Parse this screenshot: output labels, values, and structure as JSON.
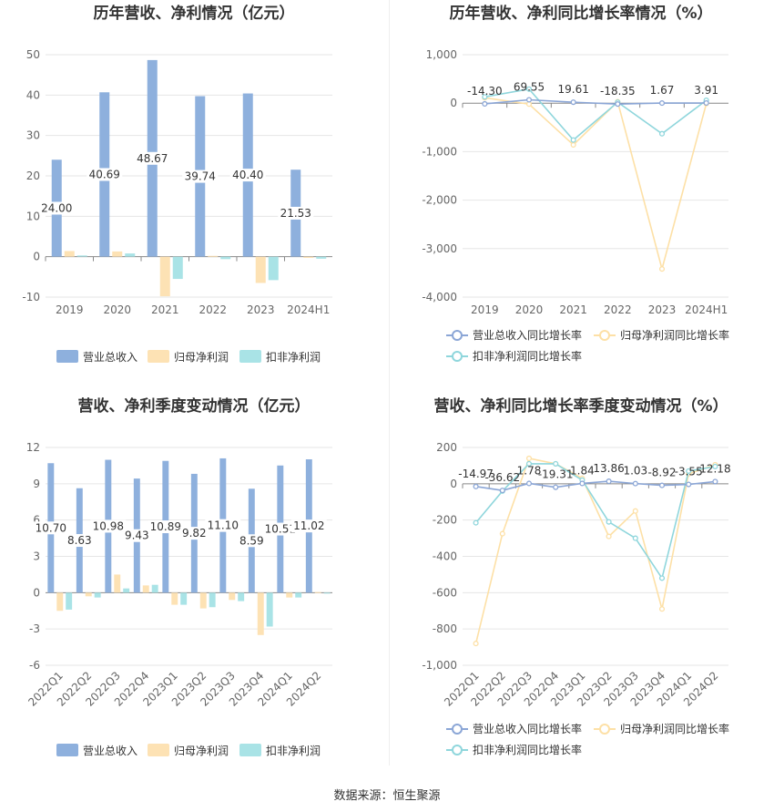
{
  "footer": {
    "source": "数据来源：恒生聚源"
  },
  "colors": {
    "revenue": "#8eb0dd",
    "net_profit": "#fde2b4",
    "deducted_profit": "#a9e3e6",
    "revenue_line": "#8ba6d6",
    "net_line": "#fde0a6",
    "deducted_line": "#8fd6dc"
  },
  "chart_data": [
    {
      "type": "bar",
      "title": "历年营收、净利情况（亿元）",
      "categories": [
        "2019",
        "2020",
        "2021",
        "2022",
        "2023",
        "2024H1"
      ],
      "ylim": [
        -10,
        50
      ],
      "yticks": [
        -10,
        0,
        10,
        20,
        30,
        40,
        50
      ],
      "series": [
        {
          "name": "营业总收入",
          "values": [
            24.0,
            40.69,
            48.67,
            39.74,
            40.4,
            21.53
          ],
          "labels": [
            "24.00",
            "40.69",
            "48.67",
            "39.74",
            "40.40",
            "21.53"
          ]
        },
        {
          "name": "归母净利润",
          "values": [
            1.4,
            1.3,
            -9.8,
            0.2,
            -6.5,
            -0.3
          ]
        },
        {
          "name": "扣非净利润",
          "values": [
            0.3,
            0.8,
            -5.5,
            -0.6,
            -5.8,
            -0.5
          ]
        }
      ],
      "legend": "bottom",
      "grid": true
    },
    {
      "type": "line",
      "title": "历年营收、净利同比增长率情况（%）",
      "categories": [
        "2019",
        "2020",
        "2021",
        "2022",
        "2023",
        "2024H1"
      ],
      "ylim": [
        -4000,
        1000
      ],
      "yticks": [
        -4000,
        -3000,
        -2000,
        -1000,
        0,
        1000
      ],
      "ytick_labels": [
        "-4,000",
        "-3,000",
        "-2,000",
        "-1,000",
        "0",
        "1,000"
      ],
      "series": [
        {
          "name": "营业总收入同比增长率",
          "values": [
            -14.3,
            69.55,
            19.61,
            -18.35,
            1.67,
            3.91
          ],
          "labels": [
            "-14.30",
            "69.55",
            "19.61",
            "-18.35",
            "1.67",
            "3.91"
          ]
        },
        {
          "name": "归母净利润同比增长率",
          "values": [
            110,
            -20,
            -860,
            30,
            -3420,
            -10
          ]
        },
        {
          "name": "扣非净利润同比增长率",
          "values": [
            130,
            290,
            -760,
            20,
            -630,
            60
          ]
        }
      ],
      "legend": "bottom",
      "grid": true
    },
    {
      "type": "bar",
      "title": "营收、净利季度变动情况（亿元）",
      "categories": [
        "2022Q1",
        "2022Q2",
        "2022Q3",
        "2022Q4",
        "2023Q1",
        "2023Q2",
        "2023Q3",
        "2023Q4",
        "2024Q1",
        "2024Q2"
      ],
      "ylim": [
        -6,
        12
      ],
      "yticks": [
        -6,
        -3,
        0,
        3,
        6,
        9,
        12
      ],
      "series": [
        {
          "name": "营业总收入",
          "values": [
            10.7,
            8.63,
            10.98,
            9.43,
            10.89,
            9.82,
            11.1,
            8.59,
            10.51,
            11.02
          ],
          "labels": [
            "10.70",
            "8.63",
            "10.98",
            "9.43",
            "10.89",
            "9.82",
            "11.10",
            "8.59",
            "10.51",
            "11.02"
          ]
        },
        {
          "name": "归母净利润",
          "values": [
            -1.5,
            -0.3,
            1.5,
            0.6,
            -1.0,
            -1.3,
            -0.6,
            -3.5,
            -0.4,
            0.05
          ]
        },
        {
          "name": "扣非净利润",
          "values": [
            -1.4,
            -0.4,
            0.35,
            0.65,
            -1.0,
            -1.2,
            -0.7,
            -2.8,
            -0.4,
            -0.05
          ]
        }
      ],
      "legend": "bottom",
      "grid": true,
      "rotate_x_labels": true
    },
    {
      "type": "line",
      "title": "营收、净利同比增长率季度变动情况（%）",
      "categories": [
        "2022Q1",
        "2022Q2",
        "2022Q3",
        "2022Q4",
        "2023Q1",
        "2023Q2",
        "2023Q3",
        "2023Q4",
        "2024Q1",
        "2024Q2"
      ],
      "ylim": [
        -1000,
        200
      ],
      "yticks": [
        -1000,
        -800,
        -600,
        -400,
        -200,
        0,
        200
      ],
      "ytick_labels": [
        "-1,000",
        "-800",
        "-600",
        "-400",
        "-200",
        "0",
        "200"
      ],
      "series": [
        {
          "name": "营业总收入同比增长率",
          "values": [
            -14.97,
            -36.62,
            1.78,
            -19.31,
            1.84,
            13.86,
            1.03,
            -8.92,
            -3.55,
            12.18
          ],
          "labels": [
            "-14.97",
            "-36.62",
            "1.78",
            "-19.31",
            "1.84",
            "13.86",
            "1.03",
            "-8.92",
            "-3.55",
            "12.18"
          ]
        },
        {
          "name": "归母净利润同比增长率",
          "values": [
            -880,
            -275,
            140,
            110,
            30,
            -290,
            -150,
            -690,
            55,
            105
          ]
        },
        {
          "name": "扣非净利润同比增长率",
          "values": [
            -215,
            -40,
            110,
            110,
            20,
            -210,
            -300,
            -520,
            70,
            95
          ]
        }
      ],
      "legend": "bottom",
      "grid": true,
      "rotate_x_labels": true
    }
  ]
}
